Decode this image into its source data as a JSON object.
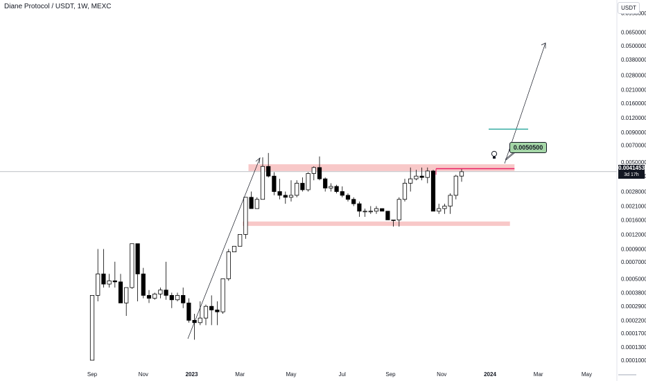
{
  "header": {
    "title": "Diane Protocol / USDT, 1W, MEXC"
  },
  "unit_button": {
    "label": "USDT"
  },
  "price_tag": {
    "price": "0.0041453",
    "countdown": "3d 17h"
  },
  "callout": {
    "label": "0.0050500"
  },
  "icons": {
    "idea": "lightbulb-icon"
  },
  "colors": {
    "up_candle": "#ffffff",
    "down_candle": "#000000",
    "candle_stroke": "#000000",
    "zone": "#f8c8c8",
    "resistance_line": "#e91e63",
    "target_line": "#26a69a",
    "callout_bg": "#a5d6a7"
  },
  "chart_data": {
    "type": "candlestick",
    "title": "Diane Protocol / USDT, 1W, MEXC",
    "scale": "log",
    "ylim": [
      0.0001,
      0.095
    ],
    "y_ticks": [
      "0.0950000",
      "0.0650000",
      "0.0500000",
      "0.0380000",
      "0.0280000",
      "0.0210000",
      "0.0160000",
      "0.0120000",
      "0.0090000",
      "0.0070000",
      "0.0050000",
      "0.0038000",
      "0.0028000",
      "0.0021000",
      "0.0016000",
      "0.0012000",
      "0.0009000",
      "0.0007000",
      "0.0005000",
      "0.0003800",
      "0.0002900",
      "0.0002200",
      "0.0001700",
      "0.0001300",
      "0.0001000"
    ],
    "x_ticks": [
      "Sep",
      "Nov",
      "2023",
      "Mar",
      "May",
      "Jul",
      "Sep",
      "Nov",
      "2024",
      "Mar",
      "May"
    ],
    "x_tick_weeks": [
      0,
      9,
      17.5,
      26,
      35,
      44,
      52.5,
      61.5,
      70,
      78.5,
      87
    ],
    "candles": [
      {
        "o": 0.0001,
        "h": 0.00036,
        "l": 0.0001,
        "c": 0.00036
      },
      {
        "o": 0.00036,
        "h": 0.0009,
        "l": 0.00032,
        "c": 0.00055
      },
      {
        "o": 0.00055,
        "h": 0.0009,
        "l": 0.00042,
        "c": 0.00045
      },
      {
        "o": 0.00045,
        "h": 0.00055,
        "l": 0.00042,
        "c": 0.00048
      },
      {
        "o": 0.00048,
        "h": 0.0007,
        "l": 0.00042,
        "c": 0.00047
      },
      {
        "o": 0.00047,
        "h": 0.00055,
        "l": 0.00031,
        "c": 0.00031
      },
      {
        "o": 0.00031,
        "h": 0.00042,
        "l": 0.00024,
        "c": 0.00042
      },
      {
        "o": 0.00042,
        "h": 0.001,
        "l": 0.00041,
        "c": 0.001
      },
      {
        "o": 0.001,
        "h": 0.001,
        "l": 0.00032,
        "c": 0.00055
      },
      {
        "o": 0.00055,
        "h": 0.00062,
        "l": 0.00034,
        "c": 0.00036
      },
      {
        "o": 0.00036,
        "h": 0.0004,
        "l": 0.00031,
        "c": 0.00034
      },
      {
        "o": 0.00034,
        "h": 0.00038,
        "l": 0.00033,
        "c": 0.00037
      },
      {
        "o": 0.00037,
        "h": 0.00042,
        "l": 0.00034,
        "c": 0.0004
      },
      {
        "o": 0.0004,
        "h": 0.0007,
        "l": 0.00033,
        "c": 0.00036
      },
      {
        "o": 0.00036,
        "h": 0.00038,
        "l": 0.00028,
        "c": 0.00033
      },
      {
        "o": 0.00033,
        "h": 0.00038,
        "l": 0.00032,
        "c": 0.00036
      },
      {
        "o": 0.00036,
        "h": 0.00042,
        "l": 0.00028,
        "c": 0.00031
      },
      {
        "o": 0.00031,
        "h": 0.00034,
        "l": 0.00021,
        "c": 0.00022
      },
      {
        "o": 0.00022,
        "h": 0.00025,
        "l": 0.00015,
        "c": 0.00021
      },
      {
        "o": 0.00021,
        "h": 0.00032,
        "l": 0.0002,
        "c": 0.00023
      },
      {
        "o": 0.00023,
        "h": 0.0003,
        "l": 0.0002,
        "c": 0.00029
      },
      {
        "o": 0.00029,
        "h": 0.00036,
        "l": 0.0002,
        "c": 0.00027
      },
      {
        "o": 0.00027,
        "h": 0.00032,
        "l": 0.0002,
        "c": 0.00026
      },
      {
        "o": 0.00026,
        "h": 0.0005,
        "l": 0.00025,
        "c": 0.0005
      },
      {
        "o": 0.0005,
        "h": 0.0009,
        "l": 0.00048,
        "c": 0.00085
      },
      {
        "o": 0.00085,
        "h": 0.00095,
        "l": 0.00085,
        "c": 0.00095
      },
      {
        "o": 0.00095,
        "h": 0.0012,
        "l": 0.00095,
        "c": 0.0012
      },
      {
        "o": 0.0012,
        "h": 0.0025,
        "l": 0.0011,
        "c": 0.0025
      },
      {
        "o": 0.0025,
        "h": 0.0028,
        "l": 0.002,
        "c": 0.002
      },
      {
        "o": 0.002,
        "h": 0.0025,
        "l": 0.002,
        "c": 0.0024
      },
      {
        "o": 0.0024,
        "h": 0.0055,
        "l": 0.0024,
        "c": 0.0046
      },
      {
        "o": 0.0046,
        "h": 0.006,
        "l": 0.0037,
        "c": 0.0038
      },
      {
        "o": 0.0038,
        "h": 0.0041,
        "l": 0.0026,
        "c": 0.0028
      },
      {
        "o": 0.0028,
        "h": 0.0036,
        "l": 0.0024,
        "c": 0.0026
      },
      {
        "o": 0.0026,
        "h": 0.0028,
        "l": 0.0022,
        "c": 0.0025
      },
      {
        "o": 0.0025,
        "h": 0.0035,
        "l": 0.0023,
        "c": 0.0026
      },
      {
        "o": 0.0026,
        "h": 0.0035,
        "l": 0.0025,
        "c": 0.0033
      },
      {
        "o": 0.0033,
        "h": 0.0037,
        "l": 0.0028,
        "c": 0.0029
      },
      {
        "o": 0.0029,
        "h": 0.0041,
        "l": 0.0028,
        "c": 0.004
      },
      {
        "o": 0.004,
        "h": 0.0046,
        "l": 0.0035,
        "c": 0.0045
      },
      {
        "o": 0.0045,
        "h": 0.0056,
        "l": 0.0035,
        "c": 0.0036
      },
      {
        "o": 0.0036,
        "h": 0.0037,
        "l": 0.0028,
        "c": 0.003
      },
      {
        "o": 0.003,
        "h": 0.0033,
        "l": 0.0028,
        "c": 0.0031
      },
      {
        "o": 0.0031,
        "h": 0.0032,
        "l": 0.0027,
        "c": 0.0028
      },
      {
        "o": 0.0028,
        "h": 0.0031,
        "l": 0.0025,
        "c": 0.0026
      },
      {
        "o": 0.0026,
        "h": 0.0027,
        "l": 0.0023,
        "c": 0.0024
      },
      {
        "o": 0.0024,
        "h": 0.0025,
        "l": 0.0021,
        "c": 0.0022
      },
      {
        "o": 0.0022,
        "h": 0.0023,
        "l": 0.0017,
        "c": 0.0019
      },
      {
        "o": 0.0019,
        "h": 0.002,
        "l": 0.0017,
        "c": 0.0019
      },
      {
        "o": 0.0019,
        "h": 0.0021,
        "l": 0.0018,
        "c": 0.0019
      },
      {
        "o": 0.0019,
        "h": 0.0021,
        "l": 0.0018,
        "c": 0.002
      },
      {
        "o": 0.002,
        "h": 0.002,
        "l": 0.0019,
        "c": 0.0019
      },
      {
        "o": 0.0019,
        "h": 0.0019,
        "l": 0.0016,
        "c": 0.0016
      },
      {
        "o": 0.0016,
        "h": 0.0016,
        "l": 0.0014,
        "c": 0.0016
      },
      {
        "o": 0.0016,
        "h": 0.0025,
        "l": 0.0014,
        "c": 0.0024
      },
      {
        "o": 0.0024,
        "h": 0.0036,
        "l": 0.0023,
        "c": 0.0033
      },
      {
        "o": 0.0033,
        "h": 0.0045,
        "l": 0.0028,
        "c": 0.0036
      },
      {
        "o": 0.0036,
        "h": 0.0043,
        "l": 0.0035,
        "c": 0.0038
      },
      {
        "o": 0.0038,
        "h": 0.0045,
        "l": 0.0035,
        "c": 0.0037
      },
      {
        "o": 0.0037,
        "h": 0.0045,
        "l": 0.0033,
        "c": 0.0042
      },
      {
        "o": 0.0042,
        "h": 0.0043,
        "l": 0.0019,
        "c": 0.0019
      },
      {
        "o": 0.0019,
        "h": 0.0022,
        "l": 0.0018,
        "c": 0.002
      },
      {
        "o": 0.002,
        "h": 0.0022,
        "l": 0.0018,
        "c": 0.0021
      },
      {
        "o": 0.0021,
        "h": 0.0027,
        "l": 0.0018,
        "c": 0.0026
      },
      {
        "o": 0.0026,
        "h": 0.0039,
        "l": 0.0024,
        "c": 0.0038
      },
      {
        "o": 0.0038,
        "h": 0.0044,
        "l": 0.0034,
        "c": 0.0041453
      }
    ]
  }
}
